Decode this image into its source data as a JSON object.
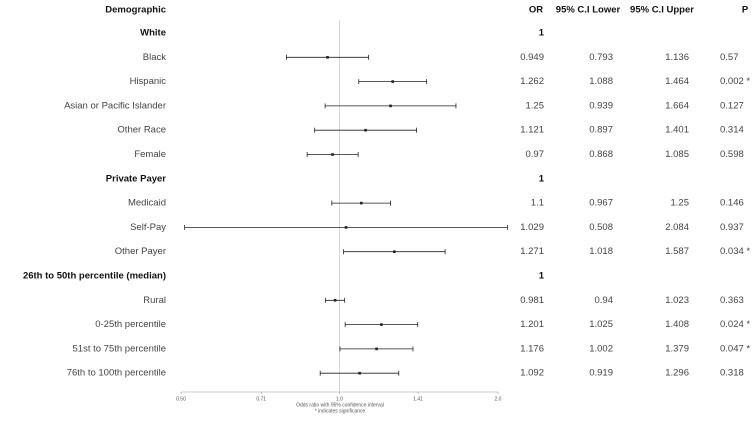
{
  "chart_data": {
    "type": "forest",
    "headers": {
      "label": "Demographic",
      "or": "OR",
      "lower": "95% C.I Lower",
      "upper": "95% C.I Upper",
      "p": "P"
    },
    "rows": [
      {
        "label": "White",
        "or": 1
      },
      {
        "label": "Black",
        "or": 0.949,
        "lower": 0.793,
        "upper": 1.136,
        "p": "0.57"
      },
      {
        "label": "Hispanic",
        "or": 1.262,
        "lower": 1.088,
        "upper": 1.464,
        "p": "0.002 *"
      },
      {
        "label": "Asian or Pacific Islander",
        "or": 1.25,
        "lower": 0.939,
        "upper": 1.664,
        "p": "0.127"
      },
      {
        "label": "Other Race",
        "or": 1.121,
        "lower": 0.897,
        "upper": 1.401,
        "p": "0.314"
      },
      {
        "label": "Female",
        "or": 0.97,
        "lower": 0.868,
        "upper": 1.085,
        "p": "0.598"
      },
      {
        "label": "Private Payer",
        "or": 1
      },
      {
        "label": "Medicaid",
        "or": 1.1,
        "lower": 0.967,
        "upper": 1.25,
        "p": "0.146"
      },
      {
        "label": "Self-Pay",
        "or": 1.029,
        "lower": 0.508,
        "upper": 2.084,
        "p": "0.937"
      },
      {
        "label": "Other Payer",
        "or": 1.271,
        "lower": 1.018,
        "upper": 1.587,
        "p": "0.034 *"
      },
      {
        "label": "26th to 50th percentile (median)",
        "or": 1
      },
      {
        "label": "Rural",
        "or": 0.981,
        "lower": 0.94,
        "upper": 1.023,
        "p": "0.363"
      },
      {
        "label": "0-25th percentile",
        "or": 1.201,
        "lower": 1.025,
        "upper": 1.408,
        "p": "0.024 *"
      },
      {
        "label": "51st to 75th percentile",
        "or": 1.176,
        "lower": 1.002,
        "upper": 1.379,
        "p": "0.047 *"
      },
      {
        "label": "76th to 100th percentile",
        "or": 1.092,
        "lower": 0.919,
        "upper": 1.296,
        "p": "0.318"
      }
    ],
    "xlim": [
      0.5,
      2.0
    ],
    "xticks": [
      {
        "value": 0.5,
        "label": "0.50"
      },
      0.71,
      {
        "value": 1.0,
        "label": "1.0"
      },
      1.41,
      {
        "value": 2.0,
        "label": "2.0"
      }
    ],
    "log_x": true,
    "reference_line": 1,
    "x_label": "Odds ratio with 95% confidence interval",
    "note": "* indicates significance",
    "color": "#222222"
  }
}
